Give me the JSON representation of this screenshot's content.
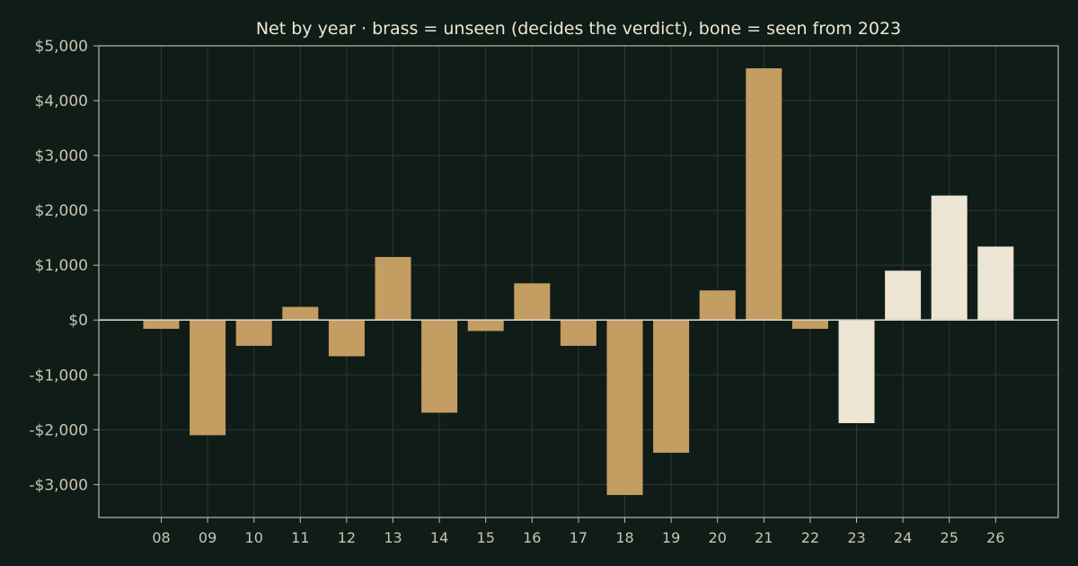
{
  "chart_data": {
    "type": "bar",
    "title": "Net by year  ·  brass = unseen (decides the verdict), bone = seen from 2023",
    "xlabel": "",
    "ylabel": "",
    "categories": [
      "08",
      "09",
      "10",
      "11",
      "12",
      "13",
      "14",
      "15",
      "16",
      "17",
      "18",
      "19",
      "20",
      "21",
      "22",
      "23",
      "24",
      "25",
      "26"
    ],
    "values": [
      -160,
      -2100,
      -470,
      240,
      -660,
      1150,
      -1690,
      -200,
      670,
      -470,
      -3190,
      -2420,
      540,
      4590,
      -160,
      -1880,
      900,
      2270,
      1340
    ],
    "groups": [
      "unseen",
      "unseen",
      "unseen",
      "unseen",
      "unseen",
      "unseen",
      "unseen",
      "unseen",
      "unseen",
      "unseen",
      "unseen",
      "unseen",
      "unseen",
      "unseen",
      "unseen",
      "seen",
      "seen",
      "seen",
      "seen"
    ],
    "group_colors": {
      "unseen": "#c49d62",
      "seen": "#ece5d3"
    },
    "ylim": [
      -3600,
      5000
    ],
    "yticks": [
      5000,
      4000,
      3000,
      2000,
      1000,
      0,
      -1000,
      -2000,
      -3000
    ],
    "ytick_labels": [
      "$5,000",
      "$4,000",
      "$3,000",
      "$2,000",
      "$1,000",
      "$0",
      "-$1,000",
      "-$2,000",
      "-$3,000"
    ],
    "grid": true,
    "colors": {
      "background": "#101c17",
      "axis": "#bfbaa8",
      "grid": "#2b3a33",
      "text": "#c9c4b4"
    }
  }
}
